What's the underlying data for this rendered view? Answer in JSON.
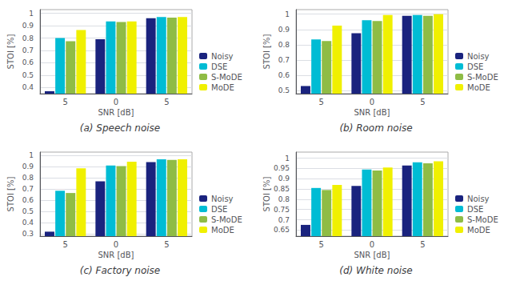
{
  "chart_data": [
    {
      "type": "bar",
      "title": "(a) Speech noise",
      "xlabel": "SNR [dB]",
      "ylabel": "STOI [%]",
      "categories": [
        "5",
        "0",
        "5"
      ],
      "series": [
        {
          "name": "Noisy",
          "color": "#1a237e",
          "values": [
            0.37,
            0.79,
            0.96
          ]
        },
        {
          "name": "DSE",
          "color": "#00bcd4",
          "values": [
            0.8,
            0.935,
            0.97
          ]
        },
        {
          "name": "S-MoDE",
          "color": "#8fbc45",
          "values": [
            0.775,
            0.93,
            0.965
          ]
        },
        {
          "name": "MoDE",
          "color": "#f0f000",
          "values": [
            0.865,
            0.935,
            0.97
          ]
        }
      ],
      "ylim": [
        0.35,
        1.03
      ],
      "yticks": [
        0.4,
        0.5,
        0.6,
        0.7,
        0.8,
        0.9,
        1.0
      ],
      "grid": true,
      "legend": "lower right"
    },
    {
      "type": "bar",
      "title": "(b) Room noise",
      "xlabel": "SNR [dB]",
      "ylabel": "STOI [%]",
      "categories": [
        "5",
        "0",
        "5"
      ],
      "series": [
        {
          "name": "Noisy",
          "color": "#1a237e",
          "values": [
            0.53,
            0.875,
            0.99
          ]
        },
        {
          "name": "DSE",
          "color": "#00bcd4",
          "values": [
            0.835,
            0.96,
            0.995
          ]
        },
        {
          "name": "S-MoDE",
          "color": "#8fbc45",
          "values": [
            0.825,
            0.955,
            0.99
          ]
        },
        {
          "name": "MoDE",
          "color": "#f0f000",
          "values": [
            0.925,
            0.995,
            1.0
          ]
        }
      ],
      "ylim": [
        0.48,
        1.03
      ],
      "yticks": [
        0.5,
        0.6,
        0.7,
        0.8,
        0.9,
        1.0
      ],
      "grid": true,
      "legend": "lower right"
    },
    {
      "type": "bar",
      "title": "(c) Factory noise",
      "xlabel": "SNR [dB]",
      "ylabel": "STOI [%]",
      "categories": [
        "5",
        "0",
        "5"
      ],
      "series": [
        {
          "name": "Noisy",
          "color": "#1a237e",
          "values": [
            0.32,
            0.77,
            0.94
          ]
        },
        {
          "name": "DSE",
          "color": "#00bcd4",
          "values": [
            0.685,
            0.91,
            0.965
          ]
        },
        {
          "name": "S-MoDE",
          "color": "#8fbc45",
          "values": [
            0.665,
            0.905,
            0.96
          ]
        },
        {
          "name": "MoDE",
          "color": "#f0f000",
          "values": [
            0.885,
            0.945,
            0.965
          ]
        }
      ],
      "ylim": [
        0.28,
        1.03
      ],
      "yticks": [
        0.3,
        0.4,
        0.5,
        0.6,
        0.7,
        0.8,
        0.9,
        1.0
      ],
      "grid": true,
      "legend": "lower right"
    },
    {
      "type": "bar",
      "title": "(d) White noise",
      "xlabel": "SNR [dB]",
      "ylabel": "STOI [%]",
      "categories": [
        "5",
        "0",
        "5"
      ],
      "series": [
        {
          "name": "Noisy",
          "color": "#1a237e",
          "values": [
            0.675,
            0.865,
            0.965
          ]
        },
        {
          "name": "DSE",
          "color": "#00bcd4",
          "values": [
            0.855,
            0.945,
            0.98
          ]
        },
        {
          "name": "S-MoDE",
          "color": "#8fbc45",
          "values": [
            0.845,
            0.94,
            0.975
          ]
        },
        {
          "name": "MoDE",
          "color": "#f0f000",
          "values": [
            0.87,
            0.955,
            0.985
          ]
        }
      ],
      "ylim": [
        0.62,
        1.03
      ],
      "yticks": [
        0.65,
        0.7,
        0.75,
        0.8,
        0.85,
        0.9,
        0.95,
        1.0
      ],
      "grid": true,
      "legend": "lower right"
    }
  ]
}
